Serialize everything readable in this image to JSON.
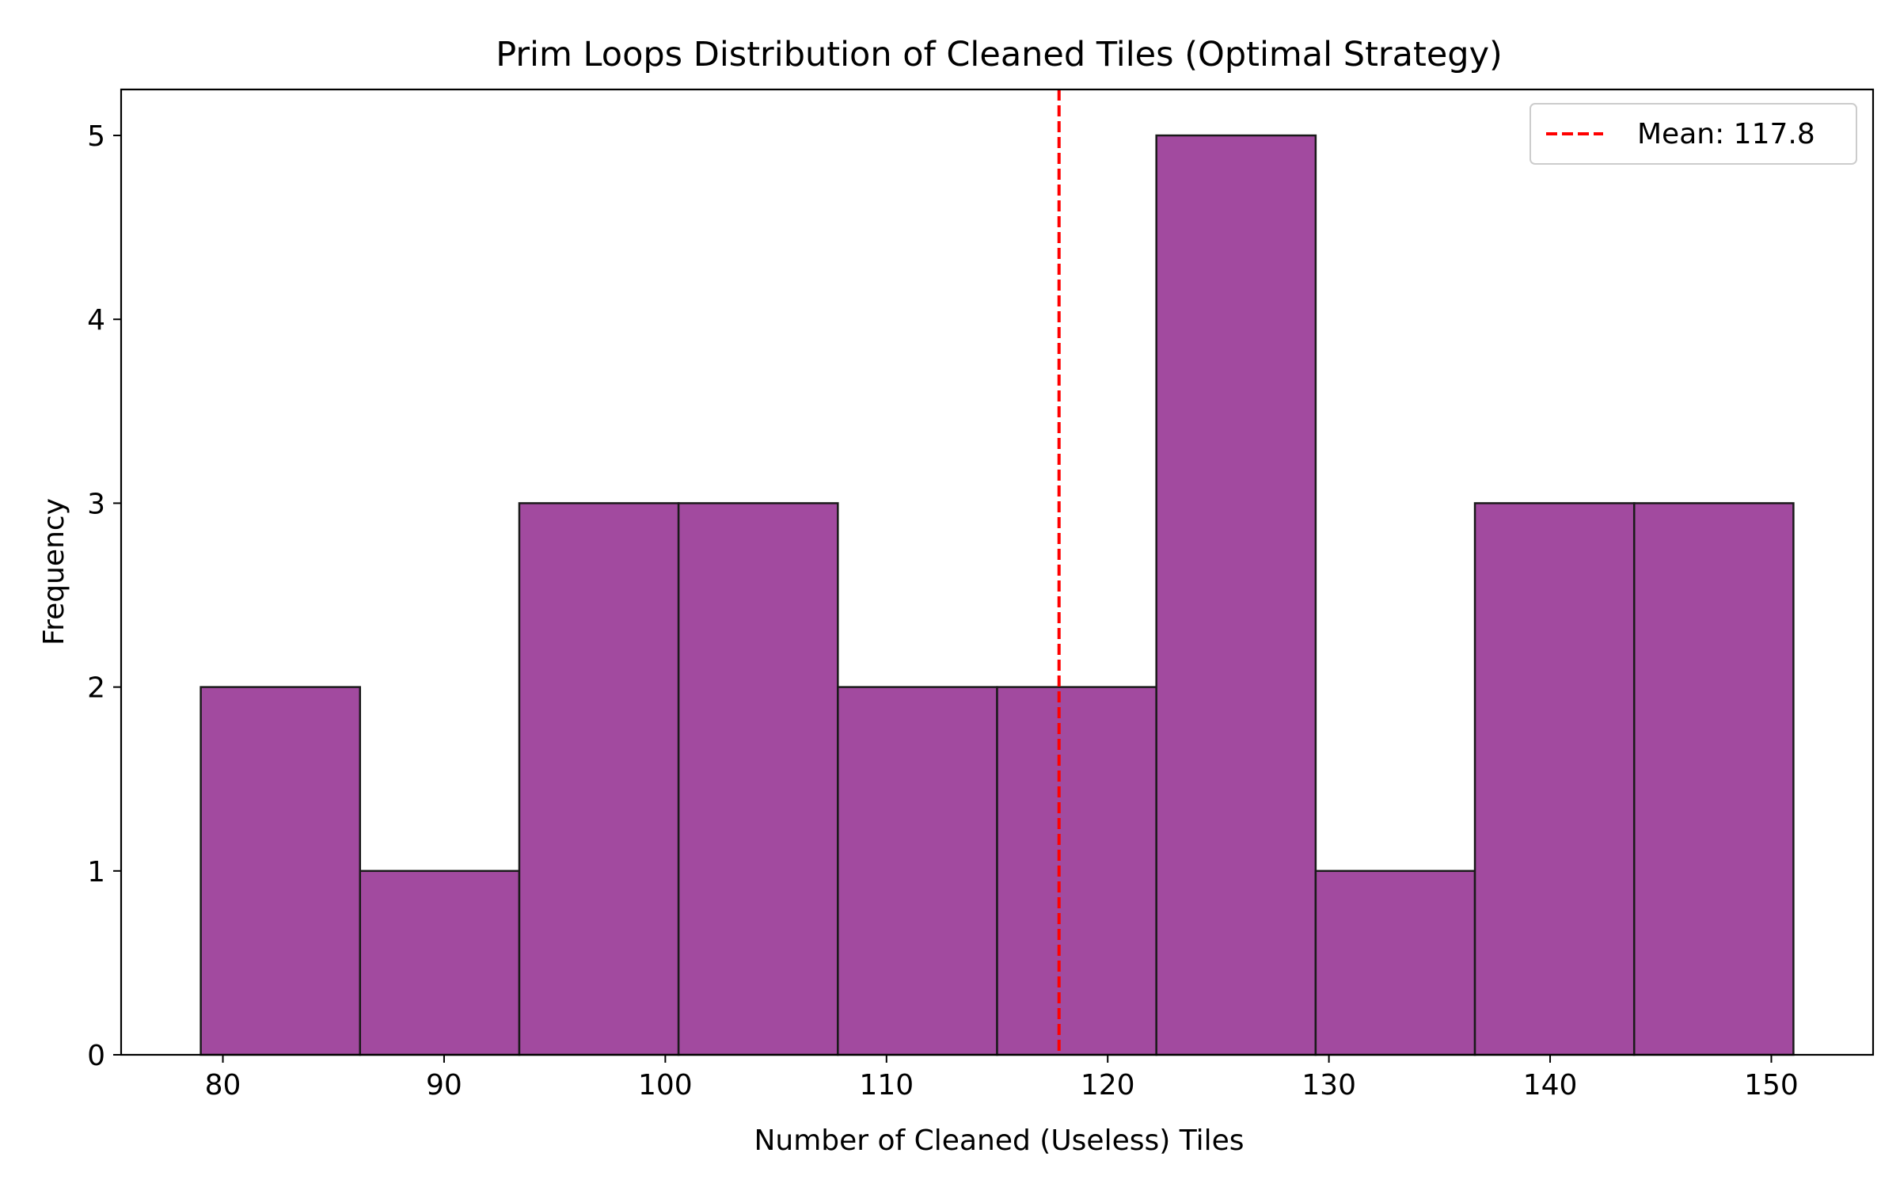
{
  "chart_data": {
    "type": "bar",
    "title": "Prim Loops Distribution of Cleaned Tiles (Optimal Strategy)",
    "xlabel": "Number of Cleaned (Useless) Tiles",
    "ylabel": "Frequency",
    "bins": [
      {
        "x0": 79.0,
        "x1": 86.2,
        "count": 2
      },
      {
        "x0": 86.2,
        "x1": 93.4,
        "count": 1
      },
      {
        "x0": 93.4,
        "x1": 100.6,
        "count": 3
      },
      {
        "x0": 100.6,
        "x1": 107.8,
        "count": 3
      },
      {
        "x0": 107.8,
        "x1": 115.0,
        "count": 2
      },
      {
        "x0": 115.0,
        "x1": 122.2,
        "count": 2
      },
      {
        "x0": 122.2,
        "x1": 129.4,
        "count": 5
      },
      {
        "x0": 129.4,
        "x1": 136.6,
        "count": 1
      },
      {
        "x0": 136.6,
        "x1": 143.8,
        "count": 3
      },
      {
        "x0": 143.8,
        "x1": 151.0,
        "count": 3
      }
    ],
    "xlim": [
      75.4,
      154.6
    ],
    "ylim": [
      0,
      5.25
    ],
    "xticks": [
      80,
      90,
      100,
      110,
      120,
      130,
      140,
      150
    ],
    "yticks": [
      0,
      1,
      2,
      3,
      4,
      5
    ],
    "bar_color": "#a24a9f",
    "bar_edge_color": "#1a1a1a",
    "mean_line": {
      "value": 117.8,
      "color": "#ff0000",
      "label": "Mean: 117.8"
    },
    "legend_position": "top-right",
    "grid": false
  }
}
